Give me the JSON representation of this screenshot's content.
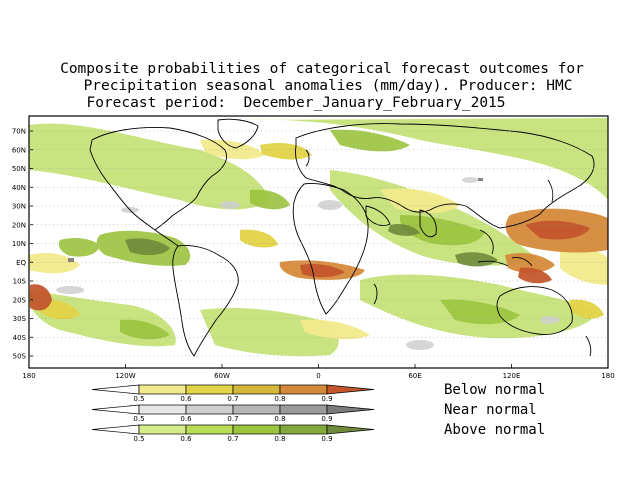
{
  "title": {
    "line1": "Composite probabilities of categorical forecast outcomes for",
    "line2": "Precipitation seasonal anomalies (mm/day). Producer: HMC",
    "line3": "Forecast period:  December_January_February_2015"
  },
  "axes": {
    "lat_labels": [
      "70N",
      "60N",
      "50N",
      "40N",
      "30N",
      "20N",
      "10N",
      "EQ",
      "10S",
      "20S",
      "30S",
      "40S",
      "50S"
    ],
    "lon_labels": [
      "180",
      "120W",
      "60W",
      "0",
      "60E",
      "120E",
      "180"
    ]
  },
  "legend": {
    "scales": [
      {
        "label": "Below normal",
        "values": [
          "0.5",
          "0.6",
          "0.7",
          "0.8",
          "0.9"
        ],
        "colors": [
          "#f2ea8c",
          "#e3d347",
          "#d4b83c",
          "#d58a3a",
          "#c4562c"
        ]
      },
      {
        "label": "Near normal",
        "values": [
          "0.5",
          "0.6",
          "0.7",
          "0.8",
          "0.9"
        ],
        "colors": [
          "#e6e6e6",
          "#cfcfcf",
          "#b5b5b5",
          "#9a9a9a",
          "#7a7a7a"
        ]
      },
      {
        "label": "Above normal",
        "values": [
          "0.5",
          "0.6",
          "0.7",
          "0.8",
          "0.9"
        ],
        "colors": [
          "#d4ec8a",
          "#b9dc55",
          "#9cc43e",
          "#85a83d",
          "#6f8a3a"
        ]
      }
    ]
  },
  "colors": {
    "below_strong": "#c4562c",
    "below_mid": "#d58a3a",
    "below_weak": "#e3d347",
    "above_strong": "#6f8a3a",
    "above_mid": "#9cc43e",
    "above_weak": "#c6e27a",
    "near": "#cfcfcf",
    "land_outline": "#000000"
  }
}
